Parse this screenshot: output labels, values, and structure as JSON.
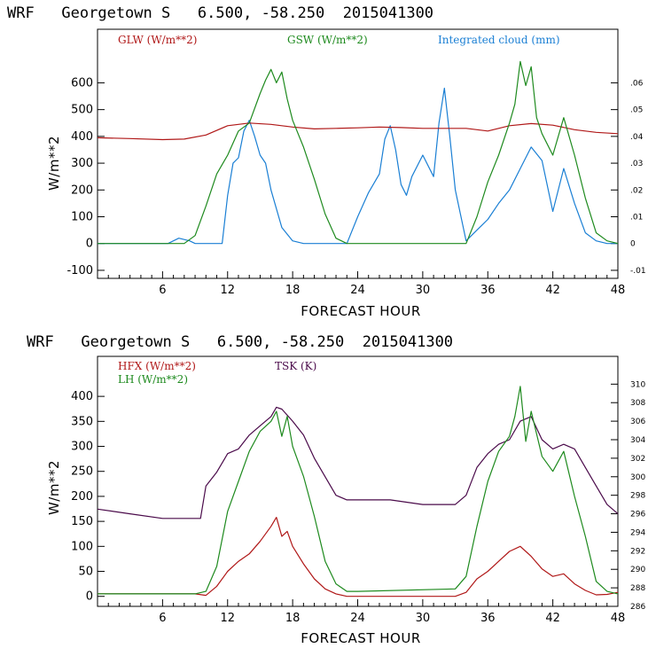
{
  "chart_data": [
    {
      "type": "line",
      "title": "WRF   Georgetown S   6.500, -58.250  2015041300",
      "xlabel": "FORECAST HOUR",
      "ylabel": "W/m**2",
      "xlim": [
        0,
        48
      ],
      "ylim": [
        -130,
        800
      ],
      "x_ticks": [
        "6",
        "12",
        "18",
        "24",
        "30",
        "36",
        "42",
        "48"
      ],
      "y_ticks": [
        "-100",
        "0",
        "100",
        "200",
        "300",
        "400",
        "500",
        "600"
      ],
      "y2lim": [
        -0.013,
        0.08
      ],
      "y2_ticks": [
        "-.01",
        "0",
        ".01",
        ".02",
        ".03",
        ".04",
        ".05",
        ".06"
      ],
      "series": [
        {
          "name": "GLW (W/m**2)",
          "color": "#b01818",
          "axis": "left",
          "x": [
            0,
            3,
            6,
            8,
            10,
            12,
            14,
            16,
            18,
            20,
            22,
            24,
            26,
            28,
            30,
            32,
            34,
            36,
            38,
            40,
            42,
            44,
            46,
            48
          ],
          "values": [
            395,
            392,
            388,
            390,
            405,
            440,
            450,
            445,
            435,
            428,
            430,
            432,
            435,
            433,
            430,
            430,
            430,
            420,
            440,
            448,
            442,
            425,
            415,
            410
          ]
        },
        {
          "name": "GSW (W/m**2)",
          "color": "#1e8a1e",
          "axis": "left",
          "x": [
            0,
            8,
            9,
            10,
            11,
            12,
            13,
            14,
            15,
            15.5,
            16,
            16.5,
            17,
            17.5,
            18,
            19,
            20,
            21,
            22,
            23,
            34,
            35,
            36,
            37,
            38,
            38.5,
            39,
            39.5,
            40,
            40.5,
            41,
            42,
            43,
            44,
            45,
            46,
            47,
            48
          ],
          "values": [
            0,
            0,
            30,
            140,
            260,
            330,
            420,
            450,
            560,
            610,
            650,
            600,
            640,
            540,
            460,
            360,
            240,
            110,
            20,
            0,
            0,
            100,
            230,
            330,
            450,
            520,
            680,
            590,
            660,
            470,
            410,
            330,
            470,
            330,
            170,
            40,
            10,
            0
          ]
        },
        {
          "name": "Integrated cloud (mm)",
          "color": "#1a7fd4",
          "axis": "right",
          "x": [
            0,
            6.5,
            7.5,
            8.5,
            9,
            11.5,
            12,
            12.5,
            13,
            13.5,
            14,
            14.5,
            15,
            15.5,
            16,
            17,
            18,
            19,
            20,
            21,
            22,
            23,
            24,
            25,
            26,
            26.5,
            27,
            27.5,
            28,
            28.5,
            29,
            30,
            31,
            31.5,
            32,
            32.5,
            33,
            34,
            35,
            36,
            37,
            38,
            39,
            40,
            41,
            42,
            43,
            44,
            45,
            46,
            47,
            48
          ],
          "values": [
            0,
            0,
            0.002,
            0.001,
            0,
            0,
            0.018,
            0.03,
            0.032,
            0.042,
            0.046,
            0.04,
            0.033,
            0.03,
            0.02,
            0.006,
            0.001,
            0,
            0,
            0,
            0,
            0,
            0.01,
            0.019,
            0.026,
            0.039,
            0.044,
            0.035,
            0.022,
            0.018,
            0.025,
            0.033,
            0.025,
            0.045,
            0.058,
            0.04,
            0.02,
            0.001,
            0.005,
            0.009,
            0.015,
            0.02,
            0.028,
            0.036,
            0.031,
            0.012,
            0.028,
            0.015,
            0.004,
            0.001,
            0,
            0
          ]
        }
      ]
    },
    {
      "type": "line",
      "title": "WRF   Georgetown S   6.500, -58.250  2015041300",
      "xlabel": "FORECAST HOUR",
      "ylabel": "W/m**2",
      "xlim": [
        0,
        48
      ],
      "ylim": [
        -20,
        480
      ],
      "x_ticks": [
        "6",
        "12",
        "18",
        "24",
        "30",
        "36",
        "42",
        "48"
      ],
      "y_ticks": [
        "0",
        "50",
        "100",
        "150",
        "200",
        "250",
        "300",
        "350",
        "400"
      ],
      "y2lim": [
        286,
        313
      ],
      "y2_ticks": [
        "286",
        "288",
        "290",
        "292",
        "294",
        "296",
        "298",
        "300",
        "302",
        "304",
        "306",
        "308",
        "310"
      ],
      "series": [
        {
          "name": "HFX (W/m**2)",
          "color": "#b01818",
          "axis": "left",
          "x": [
            0,
            9,
            10,
            11,
            12,
            13,
            14,
            15,
            16,
            16.5,
            17,
            17.5,
            18,
            19,
            20,
            21,
            22,
            23,
            33,
            34,
            35,
            36,
            37,
            38,
            39,
            39.5,
            40,
            41,
            42,
            43,
            44,
            45,
            46,
            47,
            48
          ],
          "values": [
            5,
            5,
            2,
            20,
            50,
            70,
            85,
            110,
            140,
            158,
            120,
            130,
            100,
            65,
            35,
            15,
            5,
            0,
            0,
            8,
            35,
            50,
            70,
            90,
            100,
            90,
            80,
            55,
            40,
            45,
            25,
            12,
            3,
            4,
            8
          ]
        },
        {
          "name": "LH (W/m**2)",
          "color": "#1e8a1e",
          "axis": "left",
          "x": [
            0,
            9,
            10,
            11,
            12,
            13,
            14,
            15,
            16,
            16.5,
            17,
            17.5,
            18,
            19,
            20,
            21,
            22,
            23,
            24,
            33,
            34,
            35,
            36,
            37,
            38,
            38.5,
            39,
            39.5,
            40,
            41,
            42,
            43,
            44,
            45,
            46,
            47,
            48
          ],
          "values": [
            5,
            5,
            10,
            60,
            170,
            230,
            290,
            330,
            350,
            370,
            320,
            360,
            300,
            240,
            160,
            70,
            25,
            10,
            10,
            15,
            40,
            140,
            230,
            290,
            320,
            360,
            420,
            310,
            370,
            280,
            250,
            290,
            200,
            120,
            30,
            10,
            5
          ]
        },
        {
          "name": "TSK (K)",
          "color": "#4a0a4a",
          "axis": "right",
          "x": [
            0,
            3,
            6,
            9.5,
            10,
            11,
            12,
            13,
            14,
            15,
            16,
            16.5,
            17,
            18,
            19,
            20,
            21,
            22,
            23,
            24,
            27,
            30,
            33,
            34,
            35,
            36,
            37,
            38,
            39,
            40,
            41,
            42,
            43,
            44,
            45,
            46,
            47,
            48
          ],
          "values": [
            296.5,
            296,
            295.5,
            295.5,
            299,
            300.5,
            302.5,
            303,
            304.5,
            305.5,
            306.5,
            307.5,
            307.3,
            306,
            304.5,
            302,
            300,
            298,
            297.5,
            297.5,
            297.5,
            297,
            297,
            298,
            301,
            302.5,
            303.5,
            304,
            306,
            306.5,
            304,
            303,
            303.5,
            303,
            301,
            299,
            297,
            296
          ]
        }
      ]
    }
  ]
}
